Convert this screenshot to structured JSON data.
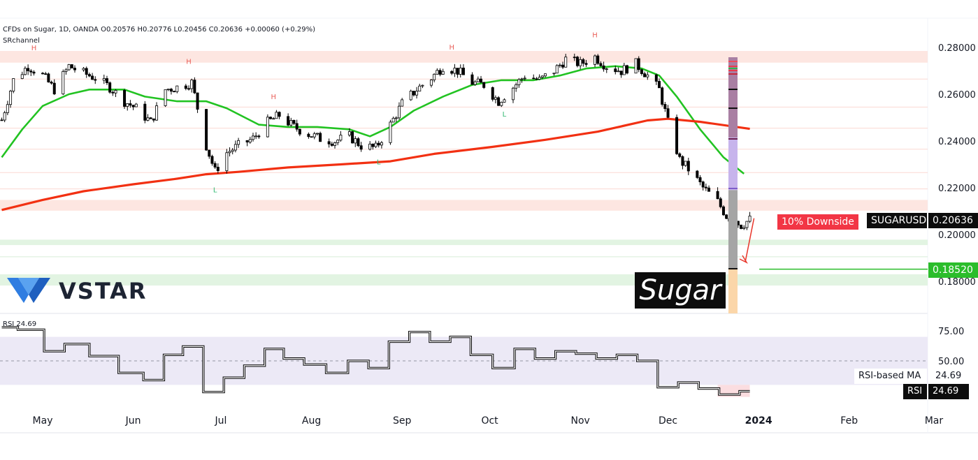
{
  "header": {
    "instrument_line": "CFDs on Sugar, 1D, OANDA  O0.20576  H0.20776  L0.20456  C0.20636  +0.00060 (+0.29%)",
    "indicator_name": "SRchannel"
  },
  "branding": {
    "logo_text": "VSTAR",
    "title_box": "Sugar"
  },
  "badges": {
    "downside": "10% Downside",
    "symbol": "SUGARUSD",
    "price": "0.20636",
    "target": "0.18520",
    "rsi_ma_label": "RSI-based MA",
    "rsi_ma_value": "24.69",
    "rsi_label": "RSI",
    "rsi_value": "24.69",
    "rsi_top_label": "RSI 24.69"
  },
  "colors": {
    "ma_fast": "#22c322",
    "ma_slow": "#f23012",
    "up_candle": "#ffffff",
    "down_candle": "#000000",
    "resistance_zone": "#fde3de",
    "support_zone": "#dff3df",
    "target_line": "#2bbd2b",
    "downside_badge": "#f23645",
    "rsi_band": "#ece9f6"
  },
  "chart_data": {
    "type": "candlestick",
    "title": "CFDs on Sugar, 1D, OANDA",
    "ylim": [
      0.17,
      0.287
    ],
    "y_ticks": [
      "0.28000",
      "0.26000",
      "0.24000",
      "0.22000",
      "0.20000",
      "0.18000"
    ],
    "x_ticks": [
      "May",
      "Jun",
      "Jul",
      "Aug",
      "Sep",
      "Oct",
      "Nov",
      "Dec",
      "2024",
      "Feb",
      "Mar"
    ],
    "last_close": 0.20636,
    "target": 0.1852,
    "sr_zones": [
      [
        0.2735,
        0.2785
      ],
      [
        0.2102,
        0.2148
      ],
      [
        0.1955,
        0.1978
      ],
      [
        0.1782,
        0.183
      ]
    ],
    "pivots": [
      {
        "label": "H",
        "date": "2023-04-28"
      },
      {
        "label": "H",
        "date": "2023-06-20"
      },
      {
        "label": "L",
        "date": "2023-06-29"
      },
      {
        "label": "H",
        "date": "2023-07-19"
      },
      {
        "label": "L",
        "date": "2023-08-24"
      },
      {
        "label": "H",
        "date": "2023-09-18"
      },
      {
        "label": "L",
        "date": "2023-10-06"
      },
      {
        "label": "H",
        "date": "2023-11-06"
      }
    ],
    "close_path": [
      [
        "2023-04-17",
        0.249
      ],
      [
        "2023-04-21",
        0.266
      ],
      [
        "2023-04-26",
        0.272
      ],
      [
        "2023-05-01",
        0.268
      ],
      [
        "2023-05-05",
        0.262
      ],
      [
        "2023-05-10",
        0.272
      ],
      [
        "2023-05-15",
        0.269
      ],
      [
        "2023-05-19",
        0.267
      ],
      [
        "2023-05-24",
        0.263
      ],
      [
        "2023-05-29",
        0.257
      ],
      [
        "2023-06-02",
        0.254
      ],
      [
        "2023-06-07",
        0.248
      ],
      [
        "2023-06-12",
        0.262
      ],
      [
        "2023-06-16",
        0.263
      ],
      [
        "2023-06-21",
        0.265
      ],
      [
        "2023-06-26",
        0.238
      ],
      [
        "2023-06-29",
        0.227
      ],
      [
        "2023-07-03",
        0.235
      ],
      [
        "2023-07-07",
        0.238
      ],
      [
        "2023-07-12",
        0.241
      ],
      [
        "2023-07-17",
        0.248
      ],
      [
        "2023-07-21",
        0.251
      ],
      [
        "2023-07-26",
        0.246
      ],
      [
        "2023-07-31",
        0.243
      ],
      [
        "2023-08-04",
        0.241
      ],
      [
        "2023-08-09",
        0.24
      ],
      [
        "2023-08-14",
        0.242
      ],
      [
        "2023-08-18",
        0.238
      ],
      [
        "2023-08-23",
        0.237
      ],
      [
        "2023-08-28",
        0.247
      ],
      [
        "2023-09-01",
        0.256
      ],
      [
        "2023-09-06",
        0.262
      ],
      [
        "2023-09-11",
        0.267
      ],
      [
        "2023-09-15",
        0.272
      ],
      [
        "2023-09-20",
        0.27
      ],
      [
        "2023-09-25",
        0.265
      ],
      [
        "2023-09-29",
        0.264
      ],
      [
        "2023-10-04",
        0.257
      ],
      [
        "2023-10-09",
        0.263
      ],
      [
        "2023-10-13",
        0.268
      ],
      [
        "2023-10-18",
        0.266
      ],
      [
        "2023-10-23",
        0.27
      ],
      [
        "2023-10-27",
        0.275
      ],
      [
        "2023-11-01",
        0.273
      ],
      [
        "2023-11-06",
        0.276
      ],
      [
        "2023-11-10",
        0.272
      ],
      [
        "2023-11-15",
        0.27
      ],
      [
        "2023-11-20",
        0.273
      ],
      [
        "2023-11-24",
        0.268
      ],
      [
        "2023-11-28",
        0.262
      ],
      [
        "2023-12-01",
        0.248
      ],
      [
        "2023-12-05",
        0.232
      ],
      [
        "2023-12-08",
        0.228
      ],
      [
        "2023-12-13",
        0.22
      ],
      [
        "2023-12-18",
        0.214
      ],
      [
        "2023-12-21",
        0.208
      ],
      [
        "2023-12-26",
        0.204
      ],
      [
        "2023-12-29",
        0.2064
      ]
    ],
    "series": [
      {
        "name": "",
        "color": "#22c322",
        "points": [
          [
            "2023-04-17",
            0.233
          ],
          [
            "2023-04-24",
            0.245
          ],
          [
            "2023-05-01",
            0.255
          ],
          [
            "2023-05-10",
            0.26
          ],
          [
            "2023-05-17",
            0.262
          ],
          [
            "2023-05-29",
            0.262
          ],
          [
            "2023-06-05",
            0.259
          ],
          [
            "2023-06-16",
            0.257
          ],
          [
            "2023-06-26",
            0.257
          ],
          [
            "2023-07-03",
            0.254
          ],
          [
            "2023-07-14",
            0.247
          ],
          [
            "2023-07-24",
            0.246
          ],
          [
            "2023-08-03",
            0.246
          ],
          [
            "2023-08-14",
            0.245
          ],
          [
            "2023-08-21",
            0.242
          ],
          [
            "2023-08-28",
            0.246
          ],
          [
            "2023-09-05",
            0.253
          ],
          [
            "2023-09-15",
            0.259
          ],
          [
            "2023-09-25",
            0.264
          ],
          [
            "2023-10-05",
            0.266
          ],
          [
            "2023-10-16",
            0.266
          ],
          [
            "2023-10-25",
            0.268
          ],
          [
            "2023-11-03",
            0.271
          ],
          [
            "2023-11-13",
            0.272
          ],
          [
            "2023-11-22",
            0.271
          ],
          [
            "2023-11-28",
            0.268
          ],
          [
            "2023-12-04",
            0.259
          ],
          [
            "2023-12-12",
            0.245
          ],
          [
            "2023-12-20",
            0.233
          ],
          [
            "2023-12-27",
            0.226
          ]
        ]
      },
      {
        "name": "",
        "color": "#f23012",
        "points": [
          [
            "2023-04-17",
            0.2105
          ],
          [
            "2023-05-01",
            0.2148
          ],
          [
            "2023-05-15",
            0.2185
          ],
          [
            "2023-06-01",
            0.2215
          ],
          [
            "2023-06-15",
            0.2237
          ],
          [
            "2023-06-26",
            0.2258
          ],
          [
            "2023-07-07",
            0.2268
          ],
          [
            "2023-07-24",
            0.2287
          ],
          [
            "2023-08-11",
            0.23
          ],
          [
            "2023-08-28",
            0.2313
          ],
          [
            "2023-09-12",
            0.2345
          ],
          [
            "2023-10-02",
            0.2375
          ],
          [
            "2023-10-20",
            0.2405
          ],
          [
            "2023-11-07",
            0.244
          ],
          [
            "2023-11-24",
            0.2488
          ],
          [
            "2023-12-01",
            0.2495
          ],
          [
            "2023-12-12",
            0.2482
          ],
          [
            "2023-12-29",
            0.2452
          ]
        ]
      }
    ],
    "rsi": {
      "ylim": [
        0,
        100
      ],
      "ticks": [
        "75.00",
        "50.00"
      ],
      "band": [
        30,
        70
      ],
      "last": 24.69,
      "points": [
        [
          "2023-04-17",
          78
        ],
        [
          "2023-04-28",
          76
        ],
        [
          "2023-05-05",
          58
        ],
        [
          "2023-05-12",
          64
        ],
        [
          "2023-05-22",
          54
        ],
        [
          "2023-06-01",
          40
        ],
        [
          "2023-06-08",
          34
        ],
        [
          "2023-06-15",
          55
        ],
        [
          "2023-06-21",
          62
        ],
        [
          "2023-06-29",
          24
        ],
        [
          "2023-07-05",
          36
        ],
        [
          "2023-07-13",
          46
        ],
        [
          "2023-07-19",
          60
        ],
        [
          "2023-07-26",
          52
        ],
        [
          "2023-08-02",
          47
        ],
        [
          "2023-08-10",
          40
        ],
        [
          "2023-08-17",
          50
        ],
        [
          "2023-08-24",
          44
        ],
        [
          "2023-08-31",
          66
        ],
        [
          "2023-09-07",
          74
        ],
        [
          "2023-09-14",
          66
        ],
        [
          "2023-09-21",
          70
        ],
        [
          "2023-09-28",
          55
        ],
        [
          "2023-10-06",
          44
        ],
        [
          "2023-10-13",
          60
        ],
        [
          "2023-10-20",
          52
        ],
        [
          "2023-10-27",
          58
        ],
        [
          "2023-11-03",
          56
        ],
        [
          "2023-11-10",
          52
        ],
        [
          "2023-11-17",
          55
        ],
        [
          "2023-11-24",
          50
        ],
        [
          "2023-12-01",
          28
        ],
        [
          "2023-12-08",
          32
        ],
        [
          "2023-12-15",
          27
        ],
        [
          "2023-12-22",
          22
        ],
        [
          "2023-12-29",
          24.69
        ]
      ]
    }
  }
}
